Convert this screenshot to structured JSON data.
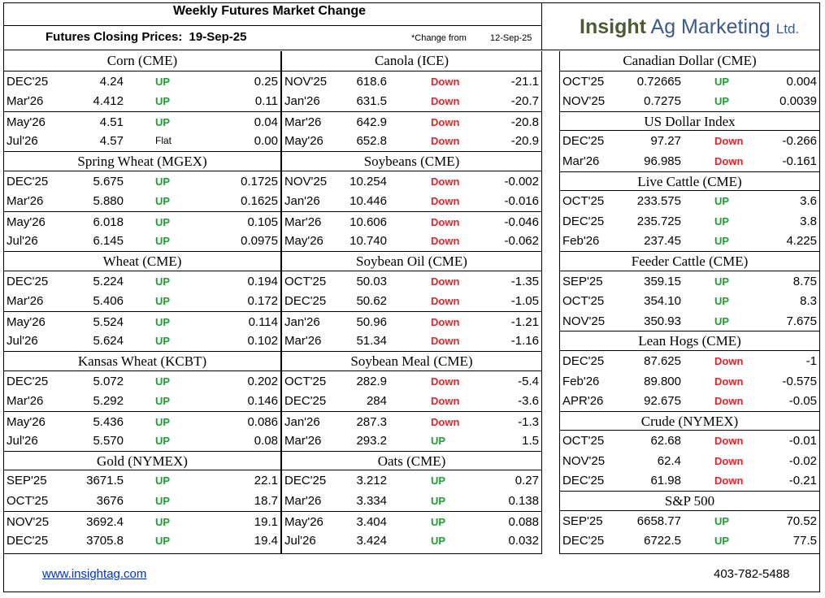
{
  "header": {
    "title": "Weekly Futures Market Change",
    "closing_label": "Futures Closing Prices:",
    "closing_date": "19-Sep-25",
    "change_from_label": "*Change from",
    "change_from_date": "12-Sep-25",
    "logo_bold": "Insight",
    "logo_main": "Ag Marketing",
    "logo_ltd": "Ltd."
  },
  "columns": [
    {
      "sections": [
        {
          "title": "Corn (CME)",
          "rows": [
            {
              "month": "DEC'25",
              "price": "4.24",
              "dir": "UP",
              "change": "0.25"
            },
            {
              "month": "Mar'26",
              "price": "4.412",
              "dir": "UP",
              "change": "0.11"
            },
            {
              "month": "May'26",
              "price": "4.51",
              "dir": "UP",
              "change": "0.04"
            },
            {
              "month": "Jul'26",
              "price": "4.57",
              "dir": "Flat",
              "change": "0.00"
            }
          ]
        },
        {
          "title": "Spring Wheat (MGEX)",
          "rows": [
            {
              "month": "DEC'25",
              "price": "5.675",
              "dir": "UP",
              "change": "0.1725"
            },
            {
              "month": "Mar'26",
              "price": "5.880",
              "dir": "UP",
              "change": "0.1625"
            },
            {
              "month": "May'26",
              "price": "6.018",
              "dir": "UP",
              "change": "0.105"
            },
            {
              "month": "Jul'26",
              "price": "6.145",
              "dir": "UP",
              "change": "0.0975"
            }
          ]
        },
        {
          "title": "Wheat (CME)",
          "rows": [
            {
              "month": "DEC'25",
              "price": "5.224",
              "dir": "UP",
              "change": "0.194"
            },
            {
              "month": "Mar'26",
              "price": "5.406",
              "dir": "UP",
              "change": "0.172"
            },
            {
              "month": "May'26",
              "price": "5.524",
              "dir": "UP",
              "change": "0.114"
            },
            {
              "month": "Jul'26",
              "price": "5.624",
              "dir": "UP",
              "change": "0.102"
            }
          ]
        },
        {
          "title": "Kansas Wheat (KCBT)",
          "rows": [
            {
              "month": "DEC'25",
              "price": "5.072",
              "dir": "UP",
              "change": "0.202"
            },
            {
              "month": "Mar'26",
              "price": "5.292",
              "dir": "UP",
              "change": "0.146"
            },
            {
              "month": "May'26",
              "price": "5.436",
              "dir": "UP",
              "change": "0.086"
            },
            {
              "month": "Jul'26",
              "price": "5.570",
              "dir": "UP",
              "change": "0.08"
            }
          ]
        },
        {
          "title": "Gold (NYMEX)",
          "rows": [
            {
              "month": "SEP'25",
              "price": "3671.5",
              "dir": "UP",
              "change": "22.1"
            },
            {
              "month": "OCT'25",
              "price": "3676",
              "dir": "UP",
              "change": "18.7"
            },
            {
              "month": "NOV'25",
              "price": "3692.4",
              "dir": "UP",
              "change": "19.1"
            },
            {
              "month": "DEC'25",
              "price": "3705.8",
              "dir": "UP",
              "change": "19.4"
            }
          ]
        }
      ]
    },
    {
      "sections": [
        {
          "title": "Canola (ICE)",
          "rows": [
            {
              "month": "NOV'25",
              "price": "618.6",
              "dir": "Down",
              "change": "-21.1"
            },
            {
              "month": "Jan'26",
              "price": "631.5",
              "dir": "Down",
              "change": "-20.7"
            },
            {
              "month": "Mar'26",
              "price": "642.9",
              "dir": "Down",
              "change": "-20.8"
            },
            {
              "month": "May'26",
              "price": "652.8",
              "dir": "Down",
              "change": "-20.9"
            }
          ]
        },
        {
          "title": "Soybeans (CME)",
          "rows": [
            {
              "month": "NOV'25",
              "price": "10.254",
              "dir": "Down",
              "change": "-0.002"
            },
            {
              "month": "Jan'26",
              "price": "10.446",
              "dir": "Down",
              "change": "-0.016"
            },
            {
              "month": "Mar'26",
              "price": "10.606",
              "dir": "Down",
              "change": "-0.046"
            },
            {
              "month": "May'26",
              "price": "10.740",
              "dir": "Down",
              "change": "-0.062"
            }
          ]
        },
        {
          "title": "Soybean Oil (CME)",
          "rows": [
            {
              "month": "OCT'25",
              "price": "50.03",
              "dir": "Down",
              "change": "-1.35"
            },
            {
              "month": "DEC'25",
              "price": "50.62",
              "dir": "Down",
              "change": "-1.05"
            },
            {
              "month": "Jan'26",
              "price": "50.96",
              "dir": "Down",
              "change": "-1.21"
            },
            {
              "month": "Mar'26",
              "price": "51.34",
              "dir": "Down",
              "change": "-1.16"
            }
          ]
        },
        {
          "title": "Soybean Meal (CME)",
          "rows": [
            {
              "month": "OCT'25",
              "price": "282.9",
              "dir": "Down",
              "change": "-5.4"
            },
            {
              "month": "DEC'25",
              "price": "284",
              "dir": "Down",
              "change": "-3.6"
            },
            {
              "month": "Jan'26",
              "price": "287.3",
              "dir": "Down",
              "change": "-1.3"
            },
            {
              "month": "Mar'26",
              "price": "293.2",
              "dir": "UP",
              "change": "1.5"
            }
          ]
        },
        {
          "title": "Oats (CME)",
          "rows": [
            {
              "month": "DEC'25",
              "price": "3.212",
              "dir": "UP",
              "change": "0.27"
            },
            {
              "month": "Mar'26",
              "price": "3.334",
              "dir": "UP",
              "change": "0.138"
            },
            {
              "month": "May'26",
              "price": "3.404",
              "dir": "UP",
              "change": "0.088"
            },
            {
              "month": "Jul'26",
              "price": "3.424",
              "dir": "UP",
              "change": "0.032"
            }
          ]
        }
      ]
    },
    {
      "sections": [
        {
          "title": "Canadian Dollar (CME)",
          "rows": [
            {
              "month": "OCT'25",
              "price": "0.72665",
              "dir": "UP",
              "change": "0.004"
            },
            {
              "month": "NOV'25",
              "price": "0.7275",
              "dir": "UP",
              "change": "0.0039"
            }
          ]
        },
        {
          "title": "US Dollar Index",
          "rows": [
            {
              "month": "DEC'25",
              "price": "97.27",
              "dir": "Down",
              "change": "-0.266"
            },
            {
              "month": "Mar'26",
              "price": "96.985",
              "dir": "Down",
              "change": "-0.161"
            }
          ]
        },
        {
          "title": "Live Cattle (CME)",
          "rows": [
            {
              "month": "OCT'25",
              "price": "233.575",
              "dir": "UP",
              "change": "3.6"
            },
            {
              "month": "DEC'25",
              "price": "235.725",
              "dir": "UP",
              "change": "3.8"
            },
            {
              "month": "Feb'26",
              "price": "237.45",
              "dir": "UP",
              "change": "4.225"
            }
          ]
        },
        {
          "title": "Feeder Cattle (CME)",
          "rows": [
            {
              "month": "SEP'25",
              "price": "359.15",
              "dir": "UP",
              "change": "8.75"
            },
            {
              "month": "OCT'25",
              "price": "354.10",
              "dir": "UP",
              "change": "8.3"
            },
            {
              "month": "NOV'25",
              "price": "350.93",
              "dir": "UP",
              "change": "7.675"
            }
          ]
        },
        {
          "title": "Lean Hogs (CME)",
          "rows": [
            {
              "month": "DEC'25",
              "price": "87.625",
              "dir": "Down",
              "change": "-1"
            },
            {
              "month": "Feb'26",
              "price": "89.800",
              "dir": "Down",
              "change": "-0.575"
            },
            {
              "month": "APR'26",
              "price": "92.675",
              "dir": "Down",
              "change": "-0.05"
            }
          ]
        },
        {
          "title": "Crude (NYMEX)",
          "rows": [
            {
              "month": "OCT'25",
              "price": "62.68",
              "dir": "Down",
              "change": "-0.01"
            },
            {
              "month": "NOV'25",
              "price": "62.4",
              "dir": "Down",
              "change": "-0.02"
            },
            {
              "month": "DEC'25",
              "price": "61.98",
              "dir": "Down",
              "change": "-0.21"
            }
          ]
        },
        {
          "title": "S&P 500",
          "rows": [
            {
              "month": "SEP'25",
              "price": "6658.77",
              "dir": "UP",
              "change": "70.52"
            },
            {
              "month": "DEC'25",
              "price": "6722.5",
              "dir": "UP",
              "change": "77.5"
            }
          ]
        }
      ]
    }
  ],
  "footer": {
    "link": "www.insightag.com",
    "phone": "403-782-5488"
  }
}
